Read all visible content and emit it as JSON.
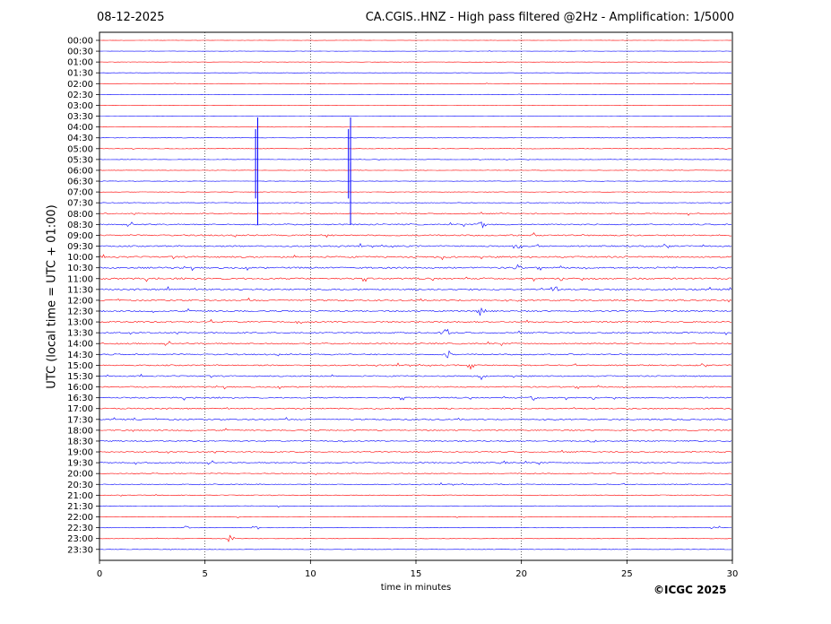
{
  "date": "08-12-2025",
  "title": "CA.CGIS..HNZ - High pass filtered @2Hz - Amplification: 1/5000",
  "copyright": "©ICGC 2025",
  "colors": {
    "red": "#ff0000",
    "blue": "#0000ff",
    "axis": "#000000"
  },
  "chart_data": {
    "type": "line",
    "title": "CA.CGIS..HNZ - High pass filtered @2Hz - Amplification: 1/5000",
    "xlabel": "time in minutes",
    "ylabel": "UTC (local time = UTC + 01:00)",
    "xlim": [
      0,
      30
    ],
    "x_ticks": [
      0,
      5,
      10,
      15,
      20,
      25,
      30
    ],
    "x_tick_labels": [
      "0",
      "5",
      "10",
      "15",
      "20",
      "25",
      "30"
    ],
    "vertical_gridlines": [
      5,
      10,
      15,
      20,
      25
    ],
    "grid": "vertical dotted",
    "row_labels": [
      "00:00",
      "00:30",
      "01:00",
      "01:30",
      "02:00",
      "02:30",
      "03:00",
      "03:30",
      "04:00",
      "04:30",
      "05:00",
      "05:30",
      "06:00",
      "06:30",
      "07:00",
      "07:30",
      "08:00",
      "08:30",
      "09:00",
      "09:30",
      "10:00",
      "10:30",
      "11:00",
      "11:30",
      "12:00",
      "12:30",
      "13:00",
      "13:30",
      "14:00",
      "14:30",
      "15:00",
      "15:30",
      "16:00",
      "16:30",
      "17:00",
      "17:30",
      "18:00",
      "18:30",
      "19:00",
      "19:30",
      "20:00",
      "20:30",
      "21:00",
      "21:30",
      "22:00",
      "22:30",
      "23:00",
      "23:30"
    ],
    "row_colors": "alternating red / blue per half hour, starting red at 00:00",
    "noise_level_per_row": [
      0.2,
      0.2,
      0.2,
      0.2,
      0.2,
      0.2,
      0.2,
      0.2,
      0.2,
      0.3,
      0.3,
      0.3,
      0.3,
      0.3,
      0.3,
      0.5,
      0.7,
      0.8,
      0.9,
      0.9,
      1.0,
      1.0,
      1.0,
      1.0,
      0.9,
      0.9,
      0.9,
      0.8,
      0.8,
      0.8,
      0.8,
      0.8,
      0.8,
      0.8,
      0.8,
      0.8,
      0.7,
      0.7,
      0.7,
      0.7,
      0.6,
      0.6,
      0.5,
      0.4,
      0.3,
      0.3,
      0.3,
      0.3
    ],
    "events": [
      {
        "row": "04:00",
        "t": 7.5,
        "amp": 11
      },
      {
        "row": "04:00",
        "t": 11.9,
        "amp": 11
      },
      {
        "row": "04:30",
        "t": 7.4,
        "amp": 10
      },
      {
        "row": "04:30",
        "t": 11.8,
        "amp": 10
      },
      {
        "row": "06:00",
        "t": 7.5,
        "amp": 9
      },
      {
        "row": "06:00",
        "t": 11.9,
        "amp": 9
      },
      {
        "row": "08:30",
        "t": 18.1,
        "amp": 1
      },
      {
        "row": "09:30",
        "t": 19.8,
        "amp": 1
      },
      {
        "row": "10:30",
        "t": 19.8,
        "amp": 1
      },
      {
        "row": "11:30",
        "t": 21.6,
        "amp": 1
      },
      {
        "row": "12:30",
        "t": 18.1,
        "amp": 1.5
      },
      {
        "row": "13:30",
        "t": 16.4,
        "amp": 1.5
      },
      {
        "row": "14:30",
        "t": 16.5,
        "amp": 1
      },
      {
        "row": "15:00",
        "t": 17.6,
        "amp": 1
      },
      {
        "row": "15:30",
        "t": 18.1,
        "amp": 1
      },
      {
        "row": "16:30",
        "t": 20.6,
        "amp": 0.7
      },
      {
        "row": "18:30",
        "t": 23.3,
        "amp": 0.7
      },
      {
        "row": "19:30",
        "t": 19.2,
        "amp": 0.7
      },
      {
        "row": "22:30",
        "t": 4.2,
        "amp": 0.7
      },
      {
        "row": "22:30",
        "t": 7.4,
        "amp": 0.7
      },
      {
        "row": "22:30",
        "t": 29.2,
        "amp": 1.5
      },
      {
        "row": "23:00",
        "t": 6.2,
        "amp": 1
      }
    ]
  }
}
